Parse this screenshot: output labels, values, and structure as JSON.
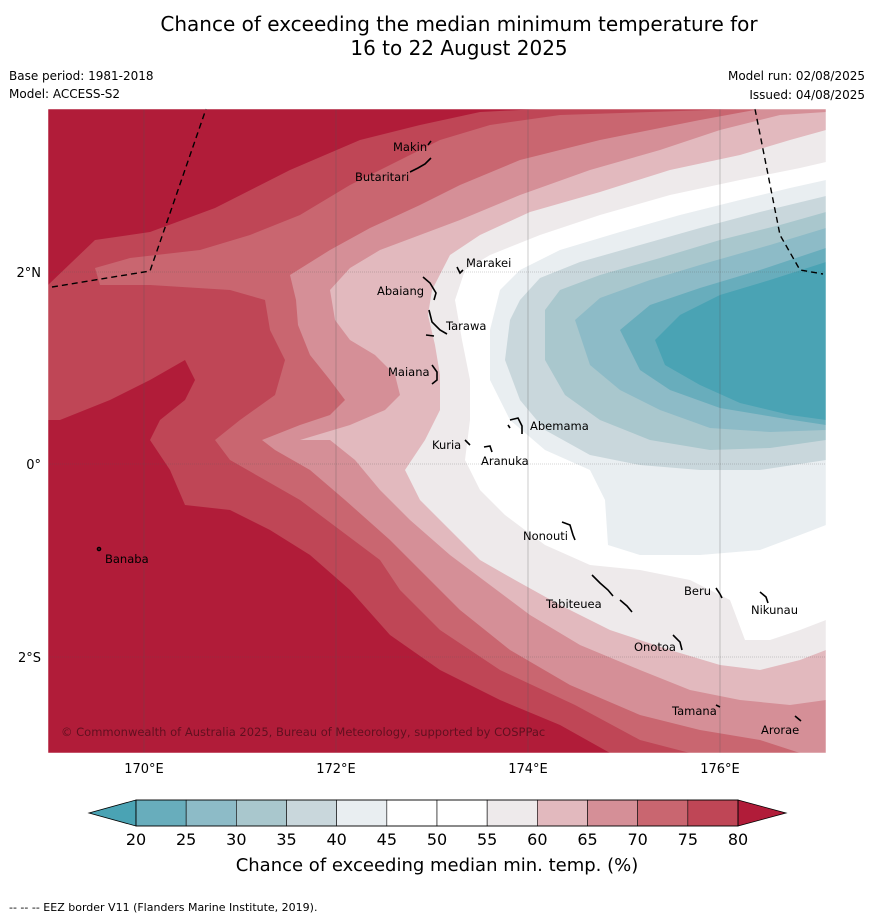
{
  "title_line1": "Chance of exceeding the median minimum temperature for",
  "title_line2": "16 to 22 August 2025",
  "base_period": "Base period: 1981-2018",
  "model": "Model: ACCESS-S2",
  "model_run": "Model run: 02/08/2025",
  "issued": "Issued: 04/08/2025",
  "copyright": "© Commonwealth of Australia 2025, Bureau of Meteorology, supported by COSPPac",
  "lon_labels": [
    "170°E",
    "172°E",
    "174°E",
    "176°E"
  ],
  "lat_labels": [
    "2°N",
    "0°",
    "2°S"
  ],
  "places": [
    "Makin",
    "Butaritari",
    "Marakei",
    "Abaiang",
    "Tarawa",
    "Maiana",
    "Abemama",
    "Kuria",
    "Aranuka",
    "Nonouti",
    "Banaba",
    "Tabiteuea",
    "Beru",
    "Nikunau",
    "Onotoa",
    "Tamana",
    "Arorae"
  ],
  "colorbar": {
    "ticks": [
      "20",
      "25",
      "30",
      "35",
      "40",
      "45",
      "50",
      "55",
      "60",
      "65",
      "70",
      "75",
      "80"
    ],
    "colors": [
      "#68adbc",
      "#8dbbc7",
      "#a9c7cd",
      "#c9d7dc",
      "#e9eef1",
      "#ffffff",
      "#ffffff",
      "#eeeaeb",
      "#e2b9be",
      "#d58f97",
      "#c96670",
      "#bf4656"
    ],
    "low_color": "#4aa3b4",
    "high_color": "#b11c39",
    "label": "Chance of exceeding median min. temp. (%)"
  },
  "footnote": "--  --  -- EEZ border V11 (Flanders Marine Institute, 2019).",
  "colors": {
    "c80": "#b11c39",
    "c75": "#bf4656",
    "c70": "#c96670",
    "c65": "#d58f97",
    "c60": "#e2b9be",
    "c55": "#eeeaeb",
    "c50": "#ffffff",
    "c40": "#e9eef1",
    "c35": "#c9d7dc",
    "c30": "#a9c7cd",
    "c25": "#8dbbc7",
    "c20": "#68adbc",
    "c15": "#4aa3b4"
  }
}
